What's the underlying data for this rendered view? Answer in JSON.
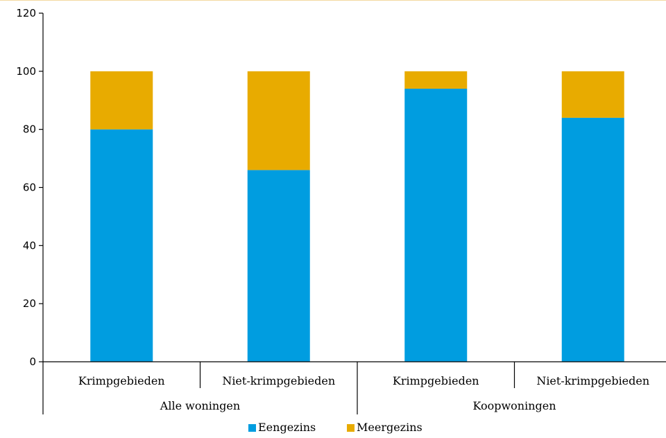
{
  "chart_data": {
    "type": "bar",
    "stacked": true,
    "categories": [
      "Krimpgebieden",
      "Niet-krimpgebieden",
      "Krimpgebieden",
      "Niet-krimpgebieden"
    ],
    "groups": [
      {
        "label": "Alle woningen",
        "categories": [
          0,
          1
        ]
      },
      {
        "label": "Koopwoningen",
        "categories": [
          2,
          3
        ]
      }
    ],
    "series": [
      {
        "name": "Eengezins",
        "color": "#009de0",
        "values": [
          80,
          66,
          94,
          84
        ]
      },
      {
        "name": "Meergezins",
        "color": "#e8ab00",
        "values": [
          20,
          34,
          6,
          16
        ]
      }
    ],
    "ylim": [
      0,
      120
    ],
    "yticks": [
      "0",
      "20",
      "40",
      "60",
      "80",
      "100",
      "120"
    ],
    "legend_position": "bottom",
    "grid": false,
    "top_border_color": "#f3d9a0"
  }
}
